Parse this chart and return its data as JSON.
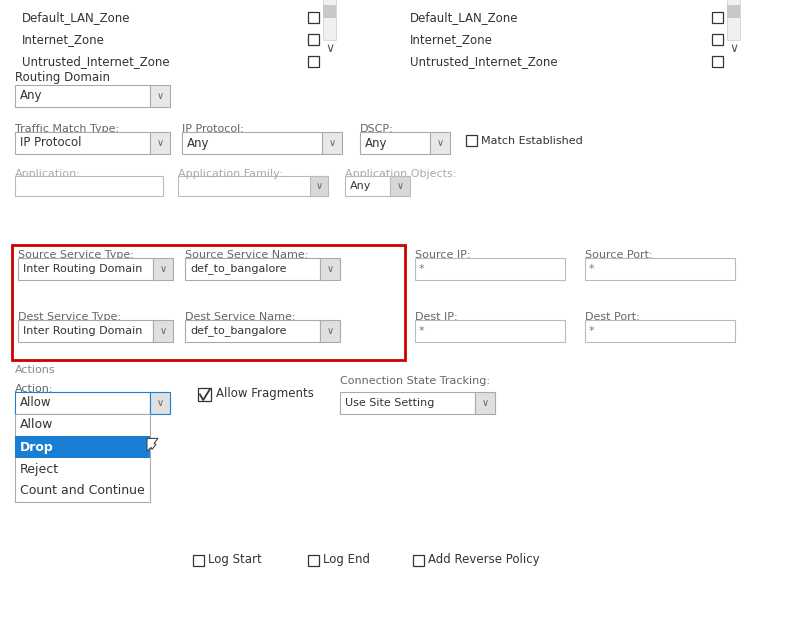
{
  "bg_color": "#ffffff",
  "text_color": "#333333",
  "label_color": "#666666",
  "border_color": "#aaaaaa",
  "highlight_border": "#cc0000",
  "blue_highlight": "#1a7fd4",
  "scrollbar_color": "#c8c8c8",
  "zones_left": [
    "Default_LAN_Zone",
    "Internet_Zone",
    "Untrusted_Internet_Zone"
  ],
  "zones_right": [
    "Default_LAN_Zone",
    "Internet_Zone",
    "Untrusted_Internet_Zone"
  ],
  "routing_domain_label": "Routing Domain",
  "routing_domain_value": "Any",
  "traffic_match_label": "Traffic Match Type:",
  "traffic_match_value": "IP Protocol",
  "ip_protocol_label": "IP Protocol:",
  "ip_protocol_value": "Any",
  "dscp_label": "DSCP:",
  "dscp_value": "Any",
  "match_established_label": "Match Established",
  "application_label": "Application:",
  "application_family_label": "Application Family:",
  "application_objects_label": "Application Objects:",
  "application_objects_value": "Any",
  "src_service_type_label": "Source Service Type:",
  "src_service_type_value": "Inter Routing Domain",
  "src_service_name_label": "Source Service Name:",
  "src_service_name_value": "def_to_bangalore",
  "src_ip_label": "Source IP:",
  "src_ip_value": "*",
  "src_port_label": "Source Port:",
  "src_port_value": "*",
  "dst_service_type_label": "Dest Service Type:",
  "dst_service_type_value": "Inter Routing Domain",
  "dst_service_name_label": "Dest Service Name:",
  "dst_service_name_value": "def_to_bangalore",
  "dst_ip_label": "Dest IP:",
  "dst_ip_value": "*",
  "dst_port_label": "Dest Port:",
  "dst_port_value": "*",
  "actions_label": "Actions",
  "action_label": "Action:",
  "action_value": "Allow",
  "dropdown_items": [
    "Allow",
    "Drop",
    "Reject",
    "Count and Continue"
  ],
  "selected_item": "Drop",
  "allow_fragments_label": "Allow Fragments",
  "connection_state_label": "Connection State Tracking:",
  "connection_state_value": "Use Site Setting",
  "log_start_label": "Log Start",
  "log_end_label": "Log End",
  "add_reverse_label": "Add Reverse Policy"
}
